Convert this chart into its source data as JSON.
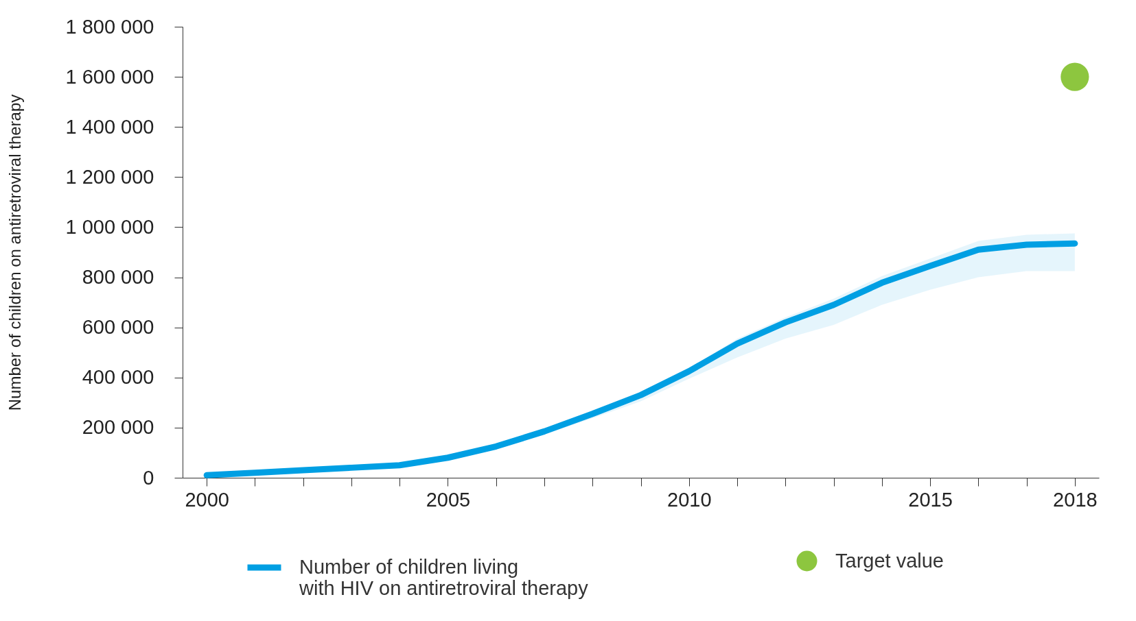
{
  "chart_data": {
    "type": "line",
    "ylabel": "Number of children on antiretroviral therapy",
    "x": [
      2000,
      2001,
      2002,
      2003,
      2004,
      2005,
      2006,
      2007,
      2008,
      2009,
      2010,
      2011,
      2012,
      2013,
      2014,
      2015,
      2016,
      2017,
      2018
    ],
    "series": [
      {
        "name": "Number of children living with HIV on antiretroviral therapy",
        "color": "#009fe3",
        "values": [
          10000,
          20000,
          30000,
          40000,
          50000,
          80000,
          125000,
          185000,
          255000,
          330000,
          425000,
          535000,
          620000,
          690000,
          778000,
          845000,
          910000,
          930000,
          935000
        ],
        "lower": [
          10000,
          20000,
          30000,
          40000,
          50000,
          78000,
          116000,
          173000,
          237000,
          305000,
          395000,
          480000,
          555000,
          610000,
          690000,
          750000,
          800000,
          825000,
          825000
        ],
        "upper": [
          12000,
          22000,
          32000,
          42000,
          52000,
          83000,
          128000,
          190000,
          262000,
          337000,
          435000,
          555000,
          640000,
          715000,
          805000,
          875000,
          945000,
          970000,
          975000
        ]
      },
      {
        "name": "Target value",
        "type": "scatter",
        "color": "#8dc63f",
        "x": [
          2018
        ],
        "values": [
          1600000
        ]
      }
    ],
    "xlim": [
      1999.5,
      2018.5
    ],
    "xticks": [
      2000,
      {
        "value": 2001,
        "label": null
      },
      {
        "value": 2002,
        "label": null
      },
      {
        "value": 2003,
        "label": null
      },
      {
        "value": 2004,
        "label": null
      },
      2005,
      {
        "value": 2006,
        "label": null
      },
      {
        "value": 2007,
        "label": null
      },
      {
        "value": 2008,
        "label": null
      },
      {
        "value": 2009,
        "label": null
      },
      2010,
      {
        "value": 2011,
        "label": null
      },
      {
        "value": 2012,
        "label": null
      },
      {
        "value": 2013,
        "label": null
      },
      {
        "value": 2014,
        "label": null
      },
      2015,
      {
        "value": 2016,
        "label": null
      },
      {
        "value": 2017,
        "label": null
      },
      2018
    ],
    "ylim": [
      0,
      1800000
    ],
    "yticks": [
      0,
      {
        "value": 200000,
        "label": "200 000"
      },
      {
        "value": 400000,
        "label": "400 000"
      },
      {
        "value": 600000,
        "label": "600 000"
      },
      {
        "value": 800000,
        "label": "800 000"
      },
      {
        "value": 1000000,
        "label": "1 000 000"
      },
      {
        "value": 1200000,
        "label": "1 200 000"
      },
      {
        "value": 1400000,
        "label": "1 400 000"
      },
      {
        "value": 1600000,
        "label": "1 600 000"
      },
      {
        "value": 1800000,
        "label": "1 800 000"
      }
    ],
    "grid": false,
    "legend": "bottom"
  }
}
